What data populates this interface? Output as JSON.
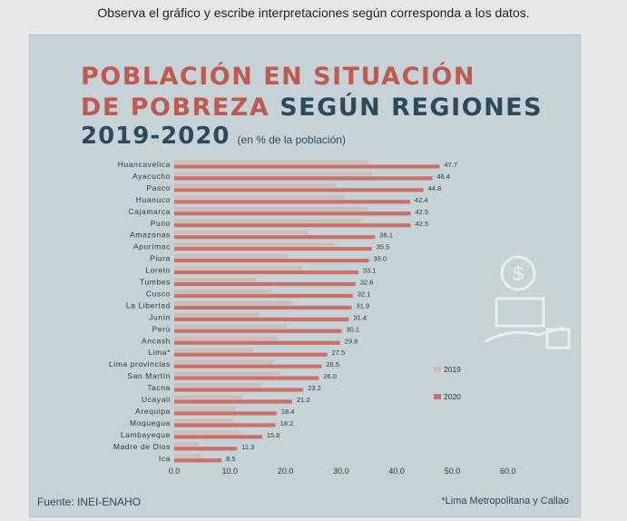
{
  "instruction": "Observa el gráfico y escribe interpretaciones según corresponda a los datos.",
  "title_part1": "POBLACIÓN EN SITUACIÓN",
  "title_part2a": "DE POBREZA",
  "title_part2b": " SEGÚN REGIONES",
  "title_part3": "2019-2020",
  "subtitle": "(en % de la población)",
  "source": "Fuente: INEI-ENAHO",
  "footnote": "*Lima Metropolitana y Callao",
  "colors": {
    "bar_2019": "#cdbcb8",
    "bar_2020": "#c97069",
    "title_red": "#bd5a52",
    "title_dark": "#2d4a5c",
    "background": "#c7d2d6"
  },
  "chart_data": {
    "type": "bar",
    "orientation": "horizontal",
    "categories": [
      "Huancavelica",
      "Ayacucho",
      "Pasco",
      "Huanuco",
      "Cajamarca",
      "Puno",
      "Amazonas",
      "Apurímac",
      "Piura",
      "Loreto",
      "Tumbes",
      "Cusco",
      "La Libertad",
      "Junín",
      "Perú",
      "Ancash",
      "Lima*",
      "Lima provincias",
      "San Martín",
      "Tacna",
      "Ucayali",
      "Arequipa",
      "Moquegua",
      "Lambayeque",
      "Madre de Dios",
      "Ica"
    ],
    "series": [
      {
        "name": "2019",
        "values": [
          34.9,
          35.5,
          29.0,
          30.6,
          34.8,
          33.7,
          24.1,
          28.8,
          20.4,
          23.0,
          14.8,
          17.4,
          21.0,
          15.3,
          20.2,
          18.6,
          14.2,
          17.9,
          19.1,
          15.6,
          12.2,
          11.0,
          10.6,
          11.8,
          4.4,
          4.8
        ]
      },
      {
        "name": "2020",
        "values": [
          47.7,
          46.4,
          44.8,
          42.4,
          42.5,
          42.5,
          36.1,
          35.5,
          35.0,
          33.1,
          32.6,
          32.1,
          31.9,
          31.4,
          30.1,
          29.8,
          27.5,
          26.5,
          26.0,
          23.2,
          21.2,
          18.4,
          18.2,
          15.8,
          11.3,
          8.5
        ]
      }
    ],
    "value_labels": [
      "47.7",
      "46.4",
      "44.8",
      "42.4",
      "42.5",
      "42.5",
      "36.1",
      "35.5",
      "35.0",
      "33.1",
      "32.6",
      "32.1",
      "31.9",
      "31.4",
      "30.1",
      "29.8",
      "27.5",
      "26.5",
      "26.0",
      "23.2",
      "21.2",
      "18.4",
      "18.2",
      "15.8",
      "11.3",
      "8.5"
    ],
    "x_ticks": [
      "0.0",
      "10.0",
      "20.0",
      "30.0",
      "40.0",
      "50.0",
      "60.0"
    ],
    "xlim": [
      0,
      60
    ],
    "legend": [
      "2019",
      "2020"
    ],
    "legend_position": "right",
    "grid": false
  }
}
